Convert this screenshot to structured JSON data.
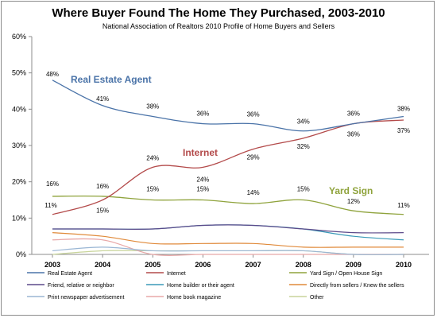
{
  "title": "Where Buyer Found The Home They Purchased, 2003-2010",
  "subtitle": "National Association of Realtors 2010 Profile of Home Buyers and Sellers",
  "chart_data": {
    "type": "line",
    "title": "Where Buyer Found The Home They Purchased, 2003-2010",
    "subtitle": "National Association of Realtors 2010 Profile of Home Buyers and Sellers",
    "xlabel": "",
    "ylabel": "",
    "x": [
      "2003",
      "2004",
      "2005",
      "2006",
      "2007",
      "2008",
      "2009",
      "2010"
    ],
    "ylim": [
      0,
      60
    ],
    "yticks": [
      "0%",
      "10%",
      "20%",
      "30%",
      "40%",
      "50%",
      "60%"
    ],
    "grid": false,
    "legend_position": "bottom",
    "series": [
      {
        "name": "Real Estate Agent",
        "color": "#4a73a8",
        "values": [
          48,
          41,
          38,
          36,
          36,
          34,
          36,
          38
        ],
        "labels": [
          "48%",
          "41%",
          "38%",
          "36%",
          "36%",
          "34%",
          "36%",
          "38%"
        ]
      },
      {
        "name": "Internet",
        "color": "#b34a4a",
        "values": [
          11,
          15,
          24,
          24,
          29,
          32,
          36,
          37
        ],
        "labels": [
          "11%",
          "15%",
          "24%",
          "24%",
          "29%",
          "32%",
          "36%",
          "37%"
        ]
      },
      {
        "name": "Yard Sign / Open House Sign",
        "color": "#8fa33c",
        "values": [
          16,
          16,
          15,
          15,
          14,
          15,
          12,
          11
        ],
        "labels": [
          "16%",
          "16%",
          "15%",
          "15%",
          "14%",
          "15%",
          "12%",
          "11%"
        ]
      },
      {
        "name": "Friend, relative or neighbor",
        "color": "#5c4a8a",
        "values": [
          7,
          7,
          7,
          8,
          8,
          7,
          6,
          6
        ]
      },
      {
        "name": "Home builder or their agent",
        "color": "#3a9ab8",
        "values": [
          7,
          7,
          7,
          8,
          8,
          7,
          5,
          4
        ]
      },
      {
        "name": "Directly from sellers / Knew the sellers",
        "color": "#e08a3a",
        "values": [
          6,
          5,
          3,
          3,
          3,
          2,
          2,
          2
        ]
      },
      {
        "name": "Print newspaper advertisement",
        "color": "#9ab6d4",
        "values": [
          1,
          2,
          1,
          1,
          1,
          1,
          0,
          0
        ]
      },
      {
        "name": "Home book magazine",
        "color": "#e8a8a8",
        "values": [
          4,
          4,
          0,
          0,
          0,
          0,
          0,
          0
        ]
      },
      {
        "name": "Other",
        "color": "#c8d49a",
        "values": [
          0,
          1,
          1,
          1,
          1,
          1,
          0,
          0
        ]
      }
    ],
    "annotations": [
      {
        "text": "Real Estate Agent",
        "color": "#4a73a8"
      },
      {
        "text": "Internet",
        "color": "#b34a4a"
      },
      {
        "text": "Yard Sign",
        "color": "#8fa33c"
      }
    ]
  }
}
